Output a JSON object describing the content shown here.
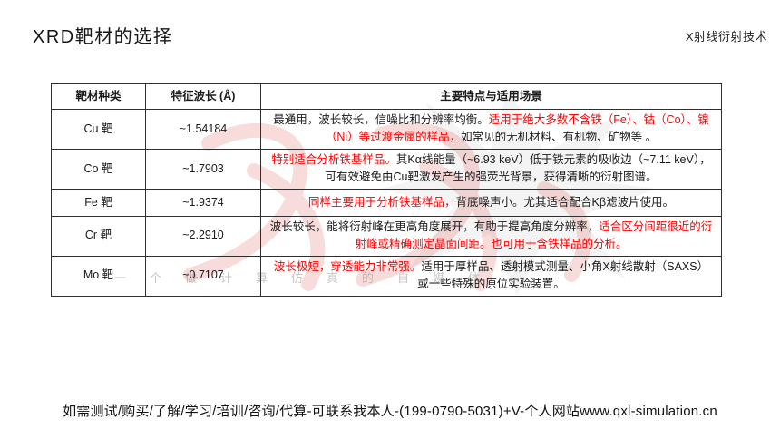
{
  "slide": {
    "title": "XRD靶材的选择",
    "corner_label": "X射线衍射技术",
    "footer": "如需测试/购买/了解/学习/培训/咨询/代算-可联系我本人-(199-0790-5031)+V-个人网站www.qxl-simulation.cn",
    "watermark_text": "一个做计算仿真的自媒体"
  },
  "colors": {
    "accent_red": "#ff0000",
    "text": "#1a1a1a",
    "border": "#2f2f2f"
  },
  "table": {
    "headers": [
      "靶材种类",
      "特征波长 (Å)",
      "主要特点与适用场景"
    ],
    "rows": [
      {
        "target": "Cu 靶",
        "wavelength": "~1.54184",
        "features": [
          {
            "text": "最通用，波长较长，信噪比和分辨率均衡。",
            "red": false
          },
          {
            "text": "适用于绝大多数不含铁（Fe）、钴（Co）、镍（Ni）等过渡金属的样品，",
            "red": true
          },
          {
            "text": "如常见的无机材料、有机物、矿物等 。",
            "red": false
          }
        ]
      },
      {
        "target": "Co 靶",
        "wavelength": "~1.7903",
        "features": [
          {
            "text": "特别适合分析铁基样品。",
            "red": true
          },
          {
            "text": "其Kα线能量（~6.93 keV）低于铁元素的吸收边（~7.11 keV），可有效避免由Cu靶激发产生的强荧光背景，获得清晰的衍射图谱。",
            "red": false
          }
        ]
      },
      {
        "target": "Fe 靶",
        "wavelength": "~1.9374",
        "features": [
          {
            "text": "同样主要用于分析铁基样品，",
            "red": true
          },
          {
            "text": "背底噪声小。尤其适合配合Kβ滤波片使用。",
            "red": false
          }
        ]
      },
      {
        "target": "Cr 靶",
        "wavelength": "~2.2910",
        "features": [
          {
            "text": "波长较长，能将衍射峰在更高角度展开，有助于提高角度分辨率，",
            "red": false
          },
          {
            "text": "适合区分间距很近的衍射峰或精确测定晶面间距。也可用于含铁样品的分析。",
            "red": true
          }
        ]
      },
      {
        "target": "Mo 靶",
        "wavelength": "~0.7107",
        "features": [
          {
            "text": "波长极短，穿透能力非常强。",
            "red": true
          },
          {
            "text": "适用于厚样品、透射模式测量、小角X射线散射（SAXS）或一些特殊的原位实验装置。",
            "red": false
          }
        ]
      }
    ]
  }
}
